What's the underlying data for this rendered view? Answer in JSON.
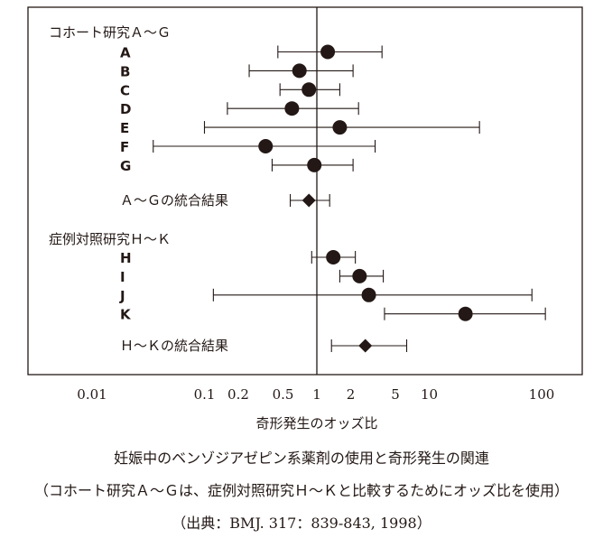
{
  "chart_data": {
    "type": "forest",
    "xscale": "log",
    "xlim": [
      0.0045,
      200
    ],
    "reference_line": 1,
    "xticks": [
      {
        "value": 0.01,
        "label": "0.01"
      },
      {
        "value": 0.1,
        "label": "0.1"
      },
      {
        "value": 0.2,
        "label": "0.2"
      },
      {
        "value": 0.5,
        "label": "0.5"
      },
      {
        "value": 1,
        "label": "1"
      },
      {
        "value": 2,
        "label": "2"
      },
      {
        "value": 5,
        "label": "5"
      },
      {
        "value": 10,
        "label": "10"
      },
      {
        "value": 100,
        "label": "100"
      }
    ],
    "xlabel": "奇形発生のオッズ比",
    "groups": [
      {
        "heading": "コホート研究Ａ～Ｇ",
        "studies": [
          {
            "label": "A",
            "or": 1.25,
            "lo": 0.45,
            "hi": 3.8
          },
          {
            "label": "B",
            "or": 0.7,
            "lo": 0.25,
            "hi": 2.1
          },
          {
            "label": "C",
            "or": 0.85,
            "lo": 0.47,
            "hi": 1.6
          },
          {
            "label": "D",
            "or": 0.6,
            "lo": 0.16,
            "hi": 2.35
          },
          {
            "label": "E",
            "or": 1.6,
            "lo": 0.1,
            "hi": 28
          },
          {
            "label": "F",
            "or": 0.35,
            "lo": 0.035,
            "hi": 3.3
          },
          {
            "label": "G",
            "or": 0.95,
            "lo": 0.4,
            "hi": 2.1
          }
        ],
        "pooled": {
          "label": "Ａ～Ｇの統合結果",
          "or": 0.85,
          "lo": 0.58,
          "hi": 1.3
        }
      },
      {
        "heading": "症例対照研究Ｈ～Ｋ",
        "studies": [
          {
            "label": "H",
            "or": 1.4,
            "lo": 0.9,
            "hi": 2.2
          },
          {
            "label": "I",
            "or": 2.4,
            "lo": 1.6,
            "hi": 3.9
          },
          {
            "label": "J",
            "or": 2.9,
            "lo": 0.12,
            "hi": 82
          },
          {
            "label": "K",
            "or": 21,
            "lo": 4,
            "hi": 108
          }
        ],
        "pooled": {
          "label": "Ｈ～Ｋの統合結果",
          "or": 2.7,
          "lo": 1.35,
          "hi": 6.3
        }
      }
    ]
  },
  "caption": {
    "title": "妊娠中のベンゾジアゼピン系薬剤の使用と奇形発生の関連",
    "note": "（コホート研究Ａ～Ｇは、症例対照研究Ｈ～Ｋと比較するためにオッズ比を使用）",
    "source": "（出典：BMJ. 317：839-843, 1998）"
  }
}
